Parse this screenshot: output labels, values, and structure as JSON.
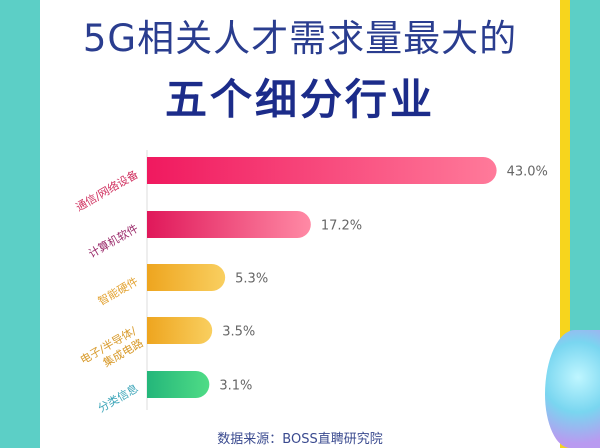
{
  "title": "5G相关人才需求量最大的",
  "subtitle": "五个细分行业",
  "source": "数据来源：BOSS直聘研究院",
  "chart_data": {
    "type": "bar",
    "orientation": "horizontal",
    "title": "5G相关人才需求量最大的 五个细分行业",
    "categories": [
      "通信/网络设备",
      "计算机软件",
      "智能硬件",
      "电子/半导体/集成电路",
      "分类信息"
    ],
    "values": [
      43.0,
      17.2,
      5.3,
      3.5,
      3.1
    ],
    "labels": [
      "43.0%",
      "17.2%",
      "5.3%",
      "3.5%",
      "3.1%"
    ],
    "colors": [
      [
        "#f0195f",
        "#ff7a9a"
      ],
      [
        "#e0185a",
        "#ff8aa5"
      ],
      [
        "#eea51f",
        "#f9cf60"
      ],
      [
        "#eea51f",
        "#f9cf60"
      ],
      [
        "#24b67a",
        "#4fdc86"
      ]
    ],
    "label_colors": [
      "#d0305f",
      "#9a2a6a",
      "#e3a332",
      "#d89a2a",
      "#3aa4b8"
    ],
    "grid": false
  }
}
